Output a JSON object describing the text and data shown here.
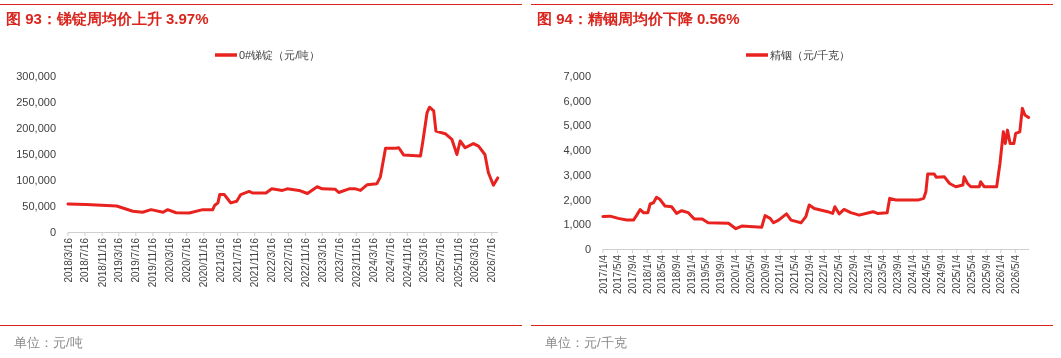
{
  "chart_data": [
    {
      "type": "line",
      "title": "图 93：锑锭周均价上升 3.97%",
      "legend": "top",
      "grid": false,
      "marker": "none",
      "line_style": "solid",
      "annotations": [
        "单位：元/吨"
      ],
      "xlim": [
        "2018-03-16",
        "2026-08-30"
      ],
      "xticks": [
        {
          "value": "2018-03-16",
          "label": "2018/3/16"
        },
        {
          "value": "2018-07-16",
          "label": "2018/7/16"
        },
        {
          "value": "2018-11-16",
          "label": "2018/11/16"
        },
        {
          "value": "2019-03-16",
          "label": "2019/3/16"
        },
        {
          "value": "2019-07-16",
          "label": "2019/7/16"
        },
        {
          "value": "2019-11-16",
          "label": "2019/11/16"
        },
        {
          "value": "2020-03-16",
          "label": "2020/3/16"
        },
        {
          "value": "2020-07-16",
          "label": "2020/7/16"
        },
        {
          "value": "2020-11-16",
          "label": "2020/11/16"
        },
        {
          "value": "2021-03-16",
          "label": "2021/3/16"
        },
        {
          "value": "2021-07-16",
          "label": "2021/7/16"
        },
        {
          "value": "2021-11-16",
          "label": "2021/11/16"
        },
        {
          "value": "2022-03-16",
          "label": "2022/3/16"
        },
        {
          "value": "2022-07-16",
          "label": "2022/7/16"
        },
        {
          "value": "2022-11-16",
          "label": "2022/11/16"
        },
        {
          "value": "2023-03-16",
          "label": "2023/3/16"
        },
        {
          "value": "2023-07-16",
          "label": "2023/7/16"
        },
        {
          "value": "2023-11-16",
          "label": "2023/11/16"
        },
        {
          "value": "2024-03-16",
          "label": "2024/3/16"
        },
        {
          "value": "2024-07-16",
          "label": "2024/7/16"
        },
        {
          "value": "2024-11-16",
          "label": "2024/11/16"
        },
        {
          "value": "2025-03-16",
          "label": "2025/3/16"
        },
        {
          "value": "2025-07-16",
          "label": "2025/7/16"
        },
        {
          "value": "2025-11-16",
          "label": "2025/11/16"
        },
        {
          "value": "2026-03-16",
          "label": "2026/3/16"
        },
        {
          "value": "2026-07-16",
          "label": "2026/7/16"
        }
      ],
      "ylim": [
        0,
        300000
      ],
      "yticks": [
        0,
        {
          "value": 50000,
          "label": "50,000"
        },
        {
          "value": 100000,
          "label": "100,000"
        },
        {
          "value": 150000,
          "label": "150,000"
        },
        {
          "value": 200000,
          "label": "200,000"
        },
        {
          "value": 250000,
          "label": "250,000"
        },
        {
          "value": 300000,
          "label": "300,000"
        }
      ],
      "x": [
        "2018-03-16",
        "2018-07-25",
        "2019-02-28",
        "2019-06-25",
        "2019-09-03",
        "2019-11-03",
        "2020-01-28",
        "2020-03-01",
        "2020-05-01",
        "2020-08-03",
        "2020-11-08",
        "2021-01-19",
        "2021-02-01",
        "2021-02-25",
        "2021-03-10",
        "2021-04-12",
        "2021-05-05",
        "2021-05-28",
        "2021-07-10",
        "2021-08-08",
        "2021-10-07",
        "2021-11-01",
        "2022-02-05",
        "2022-03-19",
        "2022-06-03",
        "2022-07-08",
        "2022-10-01",
        "2022-11-30",
        "2023-02-08",
        "2023-03-16",
        "2023-06-19",
        "2023-07-13",
        "2023-09-25",
        "2023-11-10",
        "2023-12-16",
        "2024-02-03",
        "2024-04-12",
        "2024-05-07",
        "2024-06-13",
        "2024-08-25",
        "2024-09-16",
        "2024-10-22",
        "2025-02-19",
        "2025-03-07",
        "2025-04-07",
        "2025-04-25",
        "2025-05-25",
        "2025-06-10",
        "2025-08-16",
        "2025-10-03",
        "2025-11-08",
        "2025-12-01",
        "2026-01-06",
        "2026-03-06",
        "2026-04-12",
        "2026-05-28",
        "2026-06-22",
        "2026-07-28",
        "2026-08-28"
      ],
      "series": [
        {
          "name": "0#锑锭（元/吨）",
          "color": "#e8231f",
          "values": [
            54000,
            53000,
            50000,
            40000,
            38000,
            43000,
            38000,
            43000,
            37000,
            36500,
            43000,
            43000,
            51000,
            56000,
            72000,
            72000,
            64000,
            56000,
            59000,
            72000,
            78000,
            75000,
            75000,
            83000,
            80000,
            83000,
            80000,
            74000,
            87000,
            83000,
            82000,
            76000,
            83000,
            83000,
            80000,
            91000,
            93000,
            106000,
            161000,
            161000,
            162000,
            148000,
            146000,
            172000,
            229000,
            240000,
            233000,
            194000,
            189000,
            178000,
            149000,
            175000,
            162000,
            170000,
            165000,
            149000,
            114000,
            90000,
            104000
          ]
        }
      ]
    },
    {
      "type": "line",
      "title": "图 94：精铟周均价下降 0.56%",
      "legend": "top",
      "grid": false,
      "marker": "none",
      "line_style": "solid",
      "annotations": [
        "单位：元/千克"
      ],
      "xlim": [
        "2017-01-04",
        "2026-08-25"
      ],
      "xticks": [
        {
          "value": "2017-01-04",
          "label": "2017/1/4"
        },
        {
          "value": "2017-05-04",
          "label": "2017/5/4"
        },
        {
          "value": "2017-09-04",
          "label": "2017/9/4"
        },
        {
          "value": "2018-01-04",
          "label": "2018/1/4"
        },
        {
          "value": "2018-05-04",
          "label": "2018/5/4"
        },
        {
          "value": "2018-09-04",
          "label": "2018/9/4"
        },
        {
          "value": "2019-01-04",
          "label": "2019/1/4"
        },
        {
          "value": "2019-05-04",
          "label": "2019/5/4"
        },
        {
          "value": "2019-09-04",
          "label": "2019/9/4"
        },
        {
          "value": "2020-01-04",
          "label": "2020/1/4"
        },
        {
          "value": "2020-05-04",
          "label": "2020/5/4"
        },
        {
          "value": "2020-09-04",
          "label": "2020/9/4"
        },
        {
          "value": "2021-01-04",
          "label": "2021/1/4"
        },
        {
          "value": "2021-05-04",
          "label": "2021/5/4"
        },
        {
          "value": "2021-09-04",
          "label": "2021/9/4"
        },
        {
          "value": "2022-01-04",
          "label": "2022/1/4"
        },
        {
          "value": "2022-05-04",
          "label": "2022/5/4"
        },
        {
          "value": "2022-09-04",
          "label": "2022/9/4"
        },
        {
          "value": "2023-01-04",
          "label": "2023/1/4"
        },
        {
          "value": "2023-05-04",
          "label": "2023/5/4"
        },
        {
          "value": "2023-09-04",
          "label": "2023/9/4"
        },
        {
          "value": "2024-01-04",
          "label": "2024/1/4"
        },
        {
          "value": "2024-05-04",
          "label": "2024/5/4"
        },
        {
          "value": "2024-09-04",
          "label": "2024/9/4"
        },
        {
          "value": "2025-01-04",
          "label": "2025/1/4"
        },
        {
          "value": "2025-05-04",
          "label": "2025/5/4"
        },
        {
          "value": "2025-09-04",
          "label": "2025/9/4"
        },
        {
          "value": "2026-01-04",
          "label": "2026/1/4"
        },
        {
          "value": "2026-05-04",
          "label": "2026/5/4"
        }
      ],
      "ylim": [
        0,
        7000
      ],
      "yticks": [
        0,
        {
          "value": 1000,
          "label": "1,000"
        },
        {
          "value": 2000,
          "label": "2,000"
        },
        {
          "value": 3000,
          "label": "3,000"
        },
        {
          "value": 4000,
          "label": "4,000"
        },
        {
          "value": 5000,
          "label": "5,000"
        },
        {
          "value": 6000,
          "label": "6,000"
        },
        {
          "value": 7000,
          "label": "7,000"
        }
      ],
      "x": [
        "2017-01-04",
        "2017-03-04",
        "2017-05-10",
        "2017-07-19",
        "2017-09-13",
        "2017-10-10",
        "2017-11-07",
        "2017-12-04",
        "2018-01-10",
        "2018-01-28",
        "2018-02-25",
        "2018-03-22",
        "2018-04-19",
        "2018-05-31",
        "2018-07-25",
        "2018-09-04",
        "2018-10-16",
        "2018-12-10",
        "2019-01-28",
        "2019-04-04",
        "2019-05-22",
        "2019-11-07",
        "2020-01-07",
        "2020-02-25",
        "2020-08-07",
        "2020-09-04",
        "2020-10-16",
        "2020-11-13",
        "2020-12-25",
        "2021-02-28",
        "2021-04-07",
        "2021-06-28",
        "2021-08-07",
        "2021-09-04",
        "2021-10-16",
        "2022-02-04",
        "2022-03-16",
        "2022-04-04",
        "2022-05-10",
        "2022-06-19",
        "2022-08-13",
        "2022-10-22",
        "2023-02-13",
        "2023-03-22",
        "2023-06-10",
        "2023-07-01",
        "2023-08-22",
        "2023-10-04",
        "2024-02-19",
        "2024-04-07",
        "2024-04-25",
        "2024-05-10",
        "2024-07-04",
        "2024-07-19",
        "2024-09-25",
        "2024-11-07",
        "2024-12-28",
        "2025-02-25",
        "2025-03-07",
        "2025-04-04",
        "2025-05-01",
        "2025-07-10",
        "2025-07-22",
        "2025-08-19",
        "2025-12-01",
        "2025-12-28",
        "2026-01-25",
        "2026-02-10",
        "2026-02-28",
        "2026-03-22",
        "2026-04-22",
        "2026-05-07",
        "2026-06-10",
        "2026-07-01",
        "2026-07-22",
        "2026-08-22"
      ],
      "series": [
        {
          "name": "精铟（元/千克）",
          "color": "#e8231f",
          "values": [
            1310,
            1330,
            1240,
            1170,
            1170,
            1370,
            1600,
            1470,
            1470,
            1820,
            1870,
            2090,
            2010,
            1740,
            1710,
            1440,
            1550,
            1470,
            1210,
            1210,
            1060,
            1040,
            820,
            930,
            880,
            1350,
            1240,
            1060,
            1170,
            1420,
            1170,
            1060,
            1310,
            1780,
            1640,
            1510,
            1440,
            1710,
            1420,
            1600,
            1470,
            1370,
            1510,
            1440,
            1470,
            2050,
            1980,
            1980,
            1980,
            2050,
            2320,
            3030,
            3030,
            2900,
            2920,
            2650,
            2520,
            2590,
            2920,
            2650,
            2520,
            2520,
            2720,
            2520,
            2520,
            3460,
            4740,
            4270,
            4810,
            4270,
            4270,
            4680,
            4740,
            5690,
            5420,
            5320
          ]
        }
      ]
    }
  ]
}
